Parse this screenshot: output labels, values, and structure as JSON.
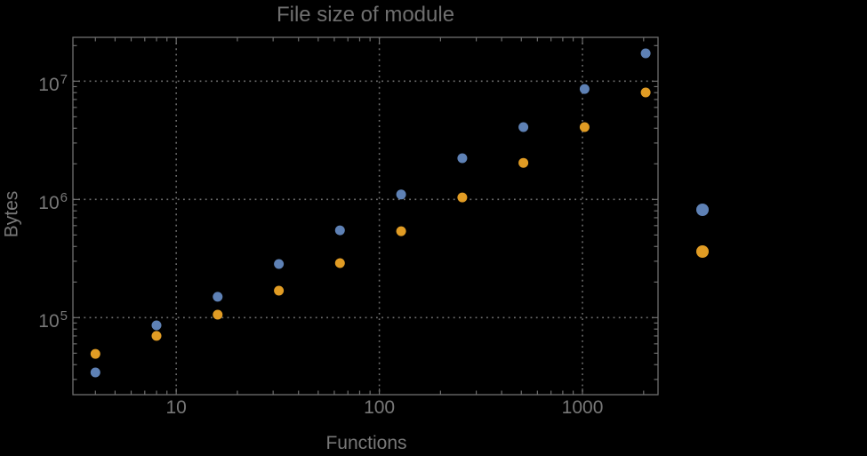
{
  "styles": {
    "background": "#000000",
    "text_color": "#787878",
    "frame_color": "#6e6e6e",
    "grid_color": "#6e6e6e",
    "series_blue": "#5e81b5",
    "series_orange": "#e19c24"
  },
  "chart_data": {
    "type": "scatter",
    "title": "File size of module",
    "xlabel": "Functions",
    "ylabel": "Bytes",
    "x_scale": "log10",
    "y_scale": "log10",
    "xlim": [
      3.1,
      2355
    ],
    "ylim": [
      22300,
      23500000
    ],
    "grid": "dotted lines at decade values only",
    "x": [
      4,
      8,
      16,
      32,
      64,
      128,
      256,
      512,
      1024,
      2048
    ],
    "series": [
      {
        "name": "blue-series",
        "color": "#5e81b5",
        "values": [
          34400,
          86000,
          150000,
          284000,
          548000,
          1100000,
          2230000,
          4090000,
          8600000,
          17200000
        ]
      },
      {
        "name": "orange-series",
        "color": "#e19c24",
        "values": [
          49400,
          70000,
          106000,
          169000,
          289000,
          538000,
          1040000,
          2040000,
          4090000,
          8030000
        ]
      }
    ],
    "x_ticks": [
      {
        "label": "10",
        "value": 10
      },
      {
        "label": "100",
        "value": 100
      },
      {
        "label": "1000",
        "value": 1000
      }
    ],
    "y_ticks": [
      {
        "mantissa": "10",
        "exponent": "5",
        "value": 100000
      },
      {
        "mantissa": "10",
        "exponent": "6",
        "value": 1000000
      },
      {
        "mantissa": "10",
        "exponent": "7",
        "value": 10000000
      }
    ],
    "legend": {
      "position": "right-outside",
      "entries": [
        {
          "label": "",
          "color": "#5e81b5"
        },
        {
          "label": "",
          "color": "#e19c24"
        }
      ]
    }
  }
}
